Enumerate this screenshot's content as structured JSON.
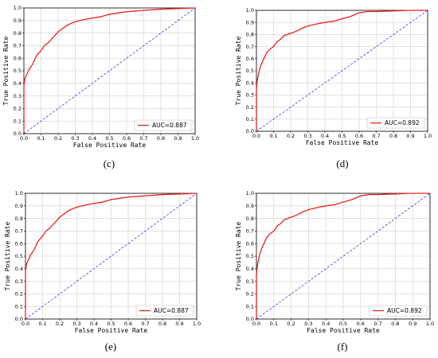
{
  "chart_data": [
    {
      "panel": "(c)",
      "type": "line",
      "xlabel": "False Positive Rate",
      "ylabel": "True Positive Rate",
      "xlim": [
        0,
        1
      ],
      "ylim": [
        0,
        1
      ],
      "xticks": [
        "0.0",
        "0.1",
        "0.2",
        "0.3",
        "0.4",
        "0.5",
        "0.6",
        "0.7",
        "0.8",
        "0.9",
        "1.0"
      ],
      "yticks": [
        "0.0",
        "0.1",
        "0.2",
        "0.3",
        "0.4",
        "0.5",
        "0.6",
        "0.7",
        "0.8",
        "0.9",
        "1.0"
      ],
      "grid": true,
      "legend_position": "bottom-right",
      "series": [
        {
          "name": "AUC=0.887",
          "color": "#e8211b",
          "style": "solid",
          "x": [
            0,
            0,
            0.005,
            0.01,
            0.02,
            0.03,
            0.04,
            0.05,
            0.06,
            0.07,
            0.08,
            0.1,
            0.12,
            0.14,
            0.16,
            0.18,
            0.2,
            0.22,
            0.25,
            0.28,
            0.3,
            0.33,
            0.36,
            0.4,
            0.45,
            0.5,
            0.55,
            0.6,
            0.65,
            0.7,
            0.8,
            0.9,
            1.0
          ],
          "y": [
            0,
            0.38,
            0.43,
            0.45,
            0.48,
            0.51,
            0.53,
            0.55,
            0.58,
            0.61,
            0.63,
            0.66,
            0.7,
            0.72,
            0.75,
            0.78,
            0.81,
            0.83,
            0.86,
            0.88,
            0.89,
            0.9,
            0.91,
            0.92,
            0.93,
            0.95,
            0.96,
            0.97,
            0.975,
            0.98,
            0.99,
            0.995,
            1.0
          ]
        },
        {
          "name": "",
          "color": "#3a3ad6",
          "style": "dashed",
          "x": [
            0,
            1
          ],
          "y": [
            0,
            1
          ]
        }
      ]
    },
    {
      "panel": "(d)",
      "type": "line",
      "xlabel": "False Positive Rate",
      "ylabel": "True Positive Rate",
      "xlim": [
        0,
        1
      ],
      "ylim": [
        0,
        1
      ],
      "xticks": [
        "0.0",
        "0.1",
        "0.2",
        "0.3",
        "0.4",
        "0.5",
        "0.6",
        "0.7",
        "0.8",
        "0.9",
        "1.0"
      ],
      "yticks": [
        "0.0",
        "0.1",
        "0.2",
        "0.3",
        "0.4",
        "0.5",
        "0.6",
        "0.7",
        "0.8",
        "0.9",
        "1.0"
      ],
      "grid": true,
      "legend_position": "bottom-right",
      "series": [
        {
          "name": "AUC=0.892",
          "color": "#e8211b",
          "style": "solid",
          "x": [
            0,
            0,
            0.005,
            0.01,
            0.02,
            0.03,
            0.04,
            0.05,
            0.06,
            0.08,
            0.1,
            0.12,
            0.14,
            0.16,
            0.18,
            0.2,
            0.22,
            0.25,
            0.28,
            0.3,
            0.33,
            0.36,
            0.4,
            0.45,
            0.5,
            0.55,
            0.6,
            0.65,
            0.7,
            0.8,
            0.9,
            1.0
          ],
          "y": [
            0,
            0.35,
            0.42,
            0.46,
            0.52,
            0.56,
            0.59,
            0.62,
            0.65,
            0.68,
            0.7,
            0.74,
            0.76,
            0.79,
            0.8,
            0.81,
            0.82,
            0.84,
            0.86,
            0.87,
            0.88,
            0.89,
            0.9,
            0.91,
            0.93,
            0.95,
            0.98,
            0.99,
            0.99,
            0.995,
            1.0,
            1.0
          ]
        },
        {
          "name": "",
          "color": "#3a3ad6",
          "style": "dashed",
          "x": [
            0,
            1
          ],
          "y": [
            0,
            1
          ]
        }
      ]
    },
    {
      "panel": "(e)",
      "type": "line",
      "xlabel": "False Positive Rate",
      "ylabel": "True Positive Rate",
      "xlim": [
        0,
        1
      ],
      "ylim": [
        0,
        1
      ],
      "xticks": [
        "0.0",
        "0.1",
        "0.2",
        "0.3",
        "0.4",
        "0.5",
        "0.6",
        "0.7",
        "0.8",
        "0.9",
        "1.0"
      ],
      "yticks": [
        "0.0",
        "0.1",
        "0.2",
        "0.3",
        "0.4",
        "0.5",
        "0.6",
        "0.7",
        "0.8",
        "0.9",
        "1.0"
      ],
      "grid": true,
      "legend_position": "bottom-right",
      "series": [
        {
          "name": "AUC=0.887",
          "color": "#e8211b",
          "style": "solid",
          "x": [
            0,
            0,
            0.005,
            0.01,
            0.02,
            0.03,
            0.04,
            0.05,
            0.06,
            0.07,
            0.08,
            0.1,
            0.12,
            0.14,
            0.16,
            0.18,
            0.2,
            0.22,
            0.25,
            0.28,
            0.3,
            0.33,
            0.36,
            0.4,
            0.45,
            0.5,
            0.55,
            0.6,
            0.65,
            0.7,
            0.8,
            0.9,
            1.0
          ],
          "y": [
            0,
            0.38,
            0.43,
            0.45,
            0.48,
            0.51,
            0.53,
            0.55,
            0.58,
            0.61,
            0.63,
            0.66,
            0.7,
            0.72,
            0.75,
            0.78,
            0.81,
            0.83,
            0.86,
            0.88,
            0.89,
            0.9,
            0.91,
            0.92,
            0.93,
            0.95,
            0.96,
            0.97,
            0.975,
            0.98,
            0.99,
            0.995,
            1.0
          ]
        },
        {
          "name": "",
          "color": "#3a3ad6",
          "style": "dashed",
          "x": [
            0,
            1
          ],
          "y": [
            0,
            1
          ]
        }
      ]
    },
    {
      "panel": "(f)",
      "type": "line",
      "xlabel": "False Positive Rate",
      "ylabel": "True Positive Rate",
      "xlim": [
        0,
        1
      ],
      "ylim": [
        0,
        1
      ],
      "xticks": [
        "0.0",
        "0.1",
        "0.2",
        "0.3",
        "0.4",
        "0.5",
        "0.6",
        "0.7",
        "0.8",
        "0.9",
        "1.0"
      ],
      "yticks": [
        "0.0",
        "0.1",
        "0.2",
        "0.3",
        "0.4",
        "0.5",
        "0.6",
        "0.7",
        "0.8",
        "0.9",
        "1.0"
      ],
      "grid": true,
      "legend_position": "bottom-right",
      "series": [
        {
          "name": "AUC=0.892",
          "color": "#e8211b",
          "style": "solid",
          "x": [
            0,
            0,
            0.005,
            0.01,
            0.02,
            0.03,
            0.04,
            0.05,
            0.06,
            0.08,
            0.1,
            0.12,
            0.14,
            0.16,
            0.18,
            0.2,
            0.22,
            0.25,
            0.28,
            0.3,
            0.33,
            0.36,
            0.4,
            0.45,
            0.5,
            0.55,
            0.6,
            0.65,
            0.7,
            0.8,
            0.9,
            1.0
          ],
          "y": [
            0,
            0.35,
            0.42,
            0.46,
            0.52,
            0.56,
            0.59,
            0.62,
            0.65,
            0.68,
            0.7,
            0.74,
            0.76,
            0.79,
            0.8,
            0.81,
            0.82,
            0.84,
            0.86,
            0.87,
            0.88,
            0.89,
            0.9,
            0.91,
            0.93,
            0.95,
            0.98,
            0.99,
            0.99,
            0.995,
            1.0,
            1.0
          ]
        },
        {
          "name": "",
          "color": "#3a3ad6",
          "style": "dashed",
          "x": [
            0,
            1
          ],
          "y": [
            0,
            1
          ]
        }
      ]
    }
  ]
}
